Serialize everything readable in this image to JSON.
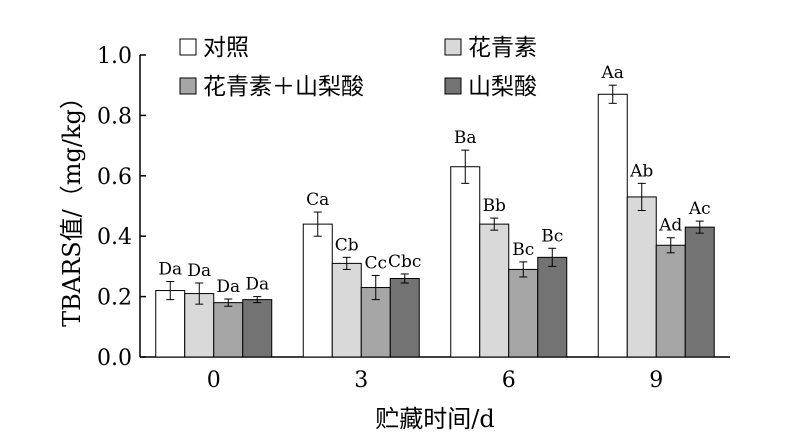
{
  "chart_data": {
    "type": "bar",
    "categories": [
      "0",
      "3",
      "6",
      "9"
    ],
    "series": [
      {
        "name": "对照",
        "color": "#ffffff",
        "values": [
          0.22,
          0.44,
          0.63,
          0.87
        ],
        "errors": [
          0.03,
          0.04,
          0.055,
          0.03
        ],
        "labels": [
          "Da",
          "Ca",
          "Ba",
          "Aa"
        ]
      },
      {
        "name": "花青素",
        "color": "#d9d9d9",
        "values": [
          0.21,
          0.31,
          0.44,
          0.53
        ],
        "errors": [
          0.035,
          0.02,
          0.02,
          0.045
        ],
        "labels": [
          "Da",
          "Cb",
          "Bb",
          "Ab"
        ]
      },
      {
        "name": "花青素＋山梨酸",
        "color": "#a6a6a6",
        "values": [
          0.18,
          0.23,
          0.29,
          0.37
        ],
        "errors": [
          0.012,
          0.04,
          0.025,
          0.025
        ],
        "labels": [
          "Da",
          "Cc",
          "Bc",
          "Ad"
        ]
      },
      {
        "name": "山梨酸",
        "color": "#737373",
        "values": [
          0.19,
          0.26,
          0.33,
          0.43
        ],
        "errors": [
          0.01,
          0.015,
          0.03,
          0.02
        ],
        "labels": [
          "Da",
          "Cbc",
          "Bc",
          "Ac"
        ]
      }
    ],
    "xlabel": "贮藏时间/d",
    "ylabel": "TBARS值/（mg/kg）",
    "ylim": [
      0,
      1.0
    ],
    "yticks": [
      "0.0",
      "0.2",
      "0.4",
      "0.6",
      "0.8",
      "1.0"
    ],
    "legend_position": "top-left",
    "grid": false
  }
}
